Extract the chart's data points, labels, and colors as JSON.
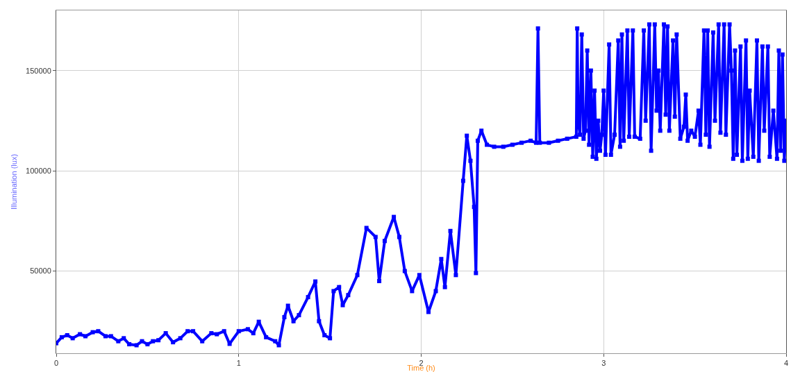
{
  "chart_data": {
    "type": "line",
    "xlabel": "Time (h)",
    "ylabel": "Illumination (lux)",
    "xlim": [
      0,
      4
    ],
    "xticks": [
      0,
      1,
      2,
      3,
      4
    ],
    "ylim": [
      9000,
      180000
    ],
    "yticks": [
      50000,
      100000,
      150000
    ],
    "grid": true,
    "marker": "square",
    "line_style": "solid",
    "series": [
      {
        "color": "#0000ff",
        "x": [
          0,
          0.03,
          0.06,
          0.09,
          0.13,
          0.16,
          0.2,
          0.23,
          0.27,
          0.3,
          0.34,
          0.37,
          0.4,
          0.44,
          0.47,
          0.5,
          0.53,
          0.56,
          0.6,
          0.64,
          0.68,
          0.72,
          0.75,
          0.8,
          0.85,
          0.88,
          0.92,
          0.95,
          1.0,
          1.05,
          1.08,
          1.11,
          1.15,
          1.2,
          1.22,
          1.25,
          1.27,
          1.3,
          1.33,
          1.38,
          1.42,
          1.44,
          1.47,
          1.5,
          1.52,
          1.55,
          1.57,
          1.6,
          1.65,
          1.7,
          1.75,
          1.77,
          1.8,
          1.85,
          1.88,
          1.91,
          1.95,
          1.99,
          2.04,
          2.08,
          2.11,
          2.13,
          2.16,
          2.19,
          2.23,
          2.25,
          2.27,
          2.29,
          2.3,
          2.31,
          2.33,
          2.36,
          2.4,
          2.45,
          2.5,
          2.55,
          2.6,
          2.63,
          2.64,
          2.65,
          2.7,
          2.75,
          2.8,
          2.85,
          2.855,
          2.86,
          2.87,
          2.88,
          2.89,
          2.9,
          2.91,
          2.92,
          2.93,
          2.94,
          2.95,
          2.96,
          2.97,
          2.98,
          2.99,
          3.0,
          3.01,
          3.03,
          3.04,
          3.06,
          3.08,
          3.09,
          3.1,
          3.11,
          3.13,
          3.14,
          3.16,
          3.17,
          3.2,
          3.22,
          3.23,
          3.25,
          3.26,
          3.28,
          3.29,
          3.3,
          3.31,
          3.33,
          3.34,
          3.35,
          3.36,
          3.38,
          3.39,
          3.4,
          3.42,
          3.44,
          3.45,
          3.46,
          3.48,
          3.5,
          3.52,
          3.53,
          3.55,
          3.56,
          3.57,
          3.58,
          3.6,
          3.61,
          3.63,
          3.64,
          3.66,
          3.67,
          3.69,
          3.7,
          3.71,
          3.72,
          3.73,
          3.75,
          3.76,
          3.78,
          3.79,
          3.8,
          3.82,
          3.84,
          3.85,
          3.87,
          3.88,
          3.9,
          3.91,
          3.93,
          3.95,
          3.96,
          3.97,
          3.98,
          3.99,
          4.0
        ],
        "values": [
          14000,
          17000,
          18000,
          16500,
          18500,
          17500,
          19500,
          20000,
          17500,
          17500,
          15000,
          16500,
          13500,
          13000,
          15000,
          13500,
          15000,
          15500,
          19000,
          14500,
          16500,
          20000,
          20000,
          15000,
          19000,
          18500,
          20000,
          13700,
          20000,
          21000,
          19000,
          24700,
          17000,
          15000,
          13000,
          27000,
          32700,
          25000,
          28000,
          37000,
          44800,
          25000,
          18000,
          16500,
          40000,
          42000,
          33000,
          38000,
          48000,
          71500,
          67000,
          45000,
          65000,
          77000,
          67000,
          50000,
          40000,
          48000,
          29600,
          40000,
          56000,
          42000,
          70000,
          48000,
          95000,
          117500,
          105000,
          82000,
          49000,
          115000,
          120000,
          113000,
          112000,
          112000,
          113000,
          114000,
          115000,
          114000,
          171000,
          114000,
          114000,
          115000,
          116000,
          117000,
          171000,
          125000,
          118000,
          168000,
          116000,
          120000,
          160000,
          113000,
          150000,
          107000,
          140000,
          106000,
          125000,
          110000,
          118000,
          140000,
          108000,
          163000,
          108000,
          118000,
          165000,
          112000,
          168000,
          115000,
          170000,
          117000,
          170000,
          117000,
          116000,
          170000,
          125000,
          173000,
          110000,
          173000,
          130000,
          150000,
          120000,
          173000,
          128000,
          172000,
          120000,
          165000,
          127000,
          168000,
          116000,
          122000,
          138000,
          115000,
          120000,
          117000,
          130000,
          113000,
          170000,
          118000,
          170000,
          112000,
          169000,
          125000,
          173000,
          119000,
          173000,
          118000,
          173000,
          150000,
          106000,
          160000,
          108000,
          162000,
          105000,
          165000,
          106000,
          140000,
          107000,
          165000,
          105000,
          162000,
          120000,
          162000,
          107000,
          130000,
          106000,
          160000,
          110000,
          158000,
          105000,
          125000
        ]
      }
    ]
  }
}
